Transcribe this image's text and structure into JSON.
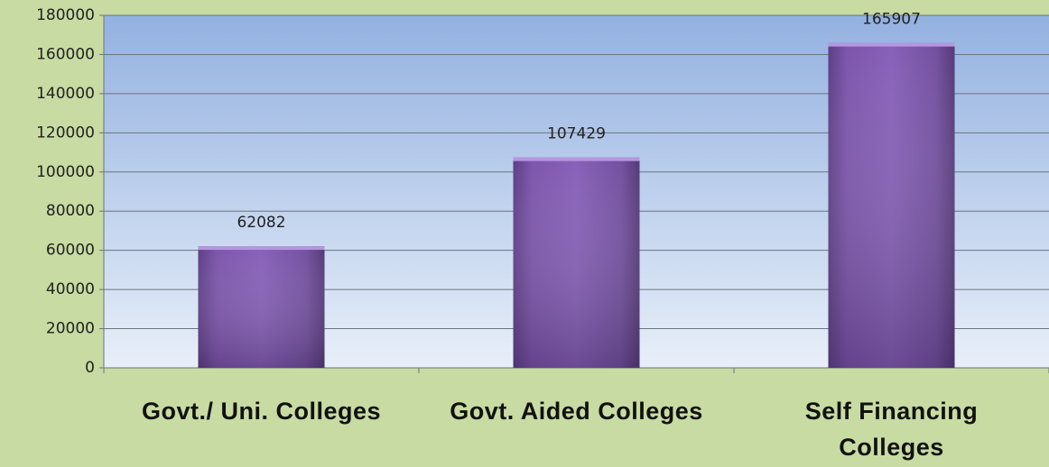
{
  "chart_data": {
    "type": "bar",
    "categories": [
      "Govt./ Uni. Colleges",
      "Govt. Aided Colleges",
      "Self Financing Colleges"
    ],
    "values": [
      62082,
      107429,
      165907
    ],
    "color": "#8760b8",
    "ylim": [
      0,
      180000
    ],
    "yticks": [
      0,
      20000,
      40000,
      60000,
      80000,
      100000,
      120000,
      140000,
      160000,
      180000
    ],
    "grid": true
  }
}
